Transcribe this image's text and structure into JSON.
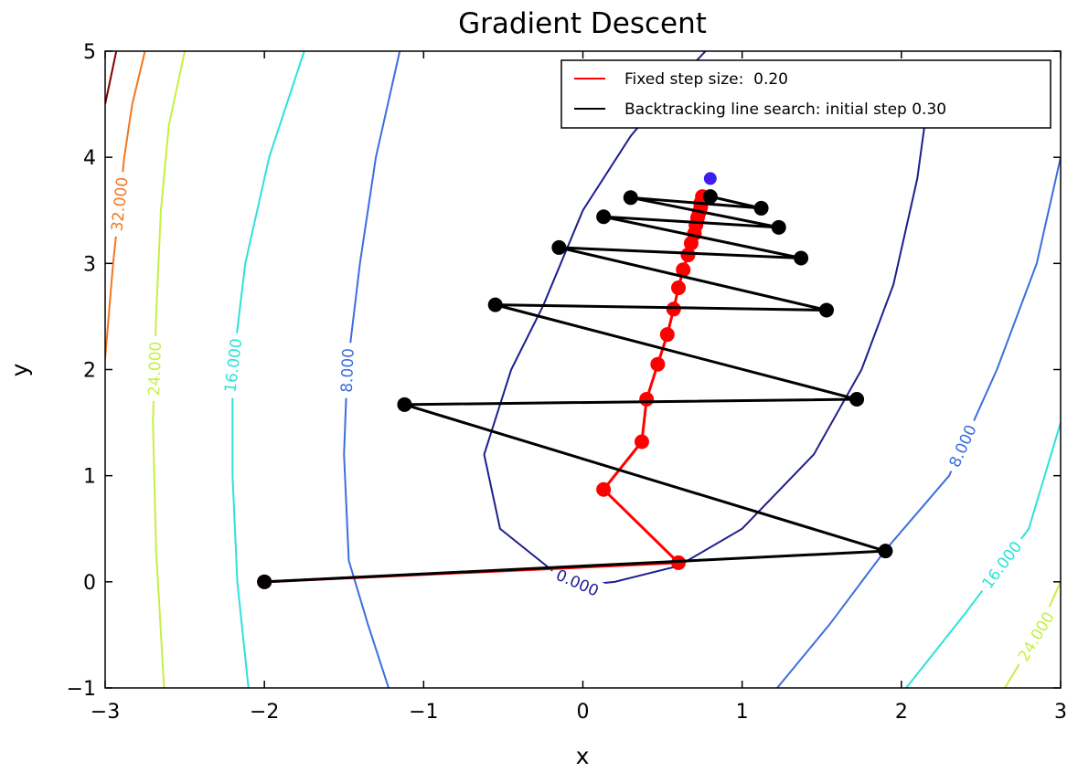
{
  "chart_data": {
    "type": "line",
    "title": "Gradient Descent",
    "xlabel": "x",
    "ylabel": "y",
    "xlim": [
      -3,
      3
    ],
    "ylim": [
      -1,
      5
    ],
    "x_ticks": [
      "−3",
      "−2",
      "−1",
      "0",
      "1",
      "2",
      "3"
    ],
    "y_ticks": [
      "−1",
      "0",
      "1",
      "2",
      "3",
      "4",
      "5"
    ],
    "grid": false,
    "legend_position": "top-right",
    "contours": [
      {
        "level": "0.000",
        "color": "#1e1e8c",
        "points": [
          [
            0.77,
            5.0
          ],
          [
            0.55,
            4.65
          ],
          [
            0.3,
            4.2
          ],
          [
            0.0,
            3.5
          ],
          [
            -0.25,
            2.6
          ],
          [
            -0.45,
            2.0
          ],
          [
            -0.62,
            1.2
          ],
          [
            -0.52,
            0.5
          ],
          [
            -0.17,
            0.08
          ],
          [
            0.0,
            -0.03
          ],
          [
            0.2,
            0.0
          ],
          [
            0.6,
            0.15
          ],
          [
            1.0,
            0.5
          ],
          [
            1.45,
            1.2
          ],
          [
            1.75,
            2.0
          ],
          [
            1.95,
            2.8
          ],
          [
            2.1,
            3.8
          ],
          [
            2.15,
            4.35
          ]
        ]
      },
      {
        "level": "8.000",
        "color": "#3c6ede",
        "points": [
          [
            -1.15,
            5.0
          ],
          [
            -1.3,
            4.0
          ],
          [
            -1.4,
            3.0
          ],
          [
            -1.48,
            2.0
          ],
          [
            -1.5,
            1.2
          ],
          [
            -1.47,
            0.2
          ],
          [
            -1.35,
            -0.4
          ],
          [
            -1.22,
            -1.0
          ]
        ]
      },
      {
        "level": "8.000",
        "color": "#3c6ede",
        "points": [
          [
            1.22,
            -1.0
          ],
          [
            1.55,
            -0.4
          ],
          [
            1.9,
            0.3
          ],
          [
            2.3,
            1.0
          ],
          [
            2.6,
            2.0
          ],
          [
            2.85,
            3.0
          ],
          [
            3.0,
            4.0
          ]
        ]
      },
      {
        "level": "16.000",
        "color": "#2de2d9",
        "points": [
          [
            -1.75,
            5.0
          ],
          [
            -1.97,
            4.0
          ],
          [
            -2.12,
            3.0
          ],
          [
            -2.2,
            2.0
          ],
          [
            -2.2,
            1.0
          ],
          [
            -2.17,
            0.0
          ],
          [
            -2.1,
            -1.0
          ]
        ]
      },
      {
        "level": "16.000",
        "color": "#2de2d9",
        "points": [
          [
            2.03,
            -1.0
          ],
          [
            2.4,
            -0.3
          ],
          [
            2.8,
            0.5
          ],
          [
            3.0,
            1.5
          ]
        ]
      },
      {
        "level": "24.000",
        "color": "#c6f044",
        "points": [
          [
            -2.5,
            5.0
          ],
          [
            -2.6,
            4.3
          ],
          [
            -2.65,
            3.5
          ],
          [
            -2.68,
            2.5
          ],
          [
            -2.7,
            1.5
          ],
          [
            -2.68,
            0.3
          ],
          [
            -2.63,
            -1.0
          ]
        ]
      },
      {
        "level": "24.000",
        "color": "#c6f044",
        "points": [
          [
            2.65,
            -1.0
          ],
          [
            2.85,
            -0.5
          ],
          [
            3.0,
            0.0
          ]
        ]
      },
      {
        "level": "32.000",
        "color": "#f07822",
        "points": [
          [
            -2.75,
            5.0
          ],
          [
            -2.83,
            4.5
          ],
          [
            -2.88,
            4.0
          ],
          [
            -2.95,
            3.0
          ],
          [
            -3.0,
            2.1
          ]
        ]
      },
      {
        "level": "",
        "color": "#800000",
        "points": [
          [
            -2.93,
            5.0
          ],
          [
            -3.0,
            4.5
          ]
        ]
      }
    ],
    "series": [
      {
        "name": "Fixed step size:  0.20",
        "color": "#ff0000",
        "x": [
          -2.0,
          0.6,
          0.13,
          0.37,
          0.4,
          0.47,
          0.53,
          0.57,
          0.6,
          0.63,
          0.66,
          0.68,
          0.7,
          0.71,
          0.72,
          0.73,
          0.74,
          0.74,
          0.75,
          0.75
        ],
        "y": [
          0.0,
          0.18,
          0.87,
          1.32,
          1.72,
          2.05,
          2.33,
          2.57,
          2.77,
          2.94,
          3.08,
          3.19,
          3.28,
          3.36,
          3.43,
          3.48,
          3.53,
          3.57,
          3.6,
          3.63
        ]
      },
      {
        "name": "Backtracking line search: initial step 0.30",
        "color": "#000000",
        "x": [
          -2.0,
          1.9,
          -1.12,
          1.72,
          -0.55,
          1.53,
          -0.15,
          1.37,
          0.13,
          1.23,
          0.3,
          1.12,
          0.8
        ],
        "y": [
          0.0,
          0.29,
          1.67,
          1.72,
          2.61,
          2.56,
          3.15,
          3.05,
          3.44,
          3.34,
          3.62,
          3.52,
          3.63
        ]
      }
    ],
    "optimum_marker": {
      "x": 0.8,
      "y": 3.8,
      "color": "#3b1ff0"
    }
  }
}
